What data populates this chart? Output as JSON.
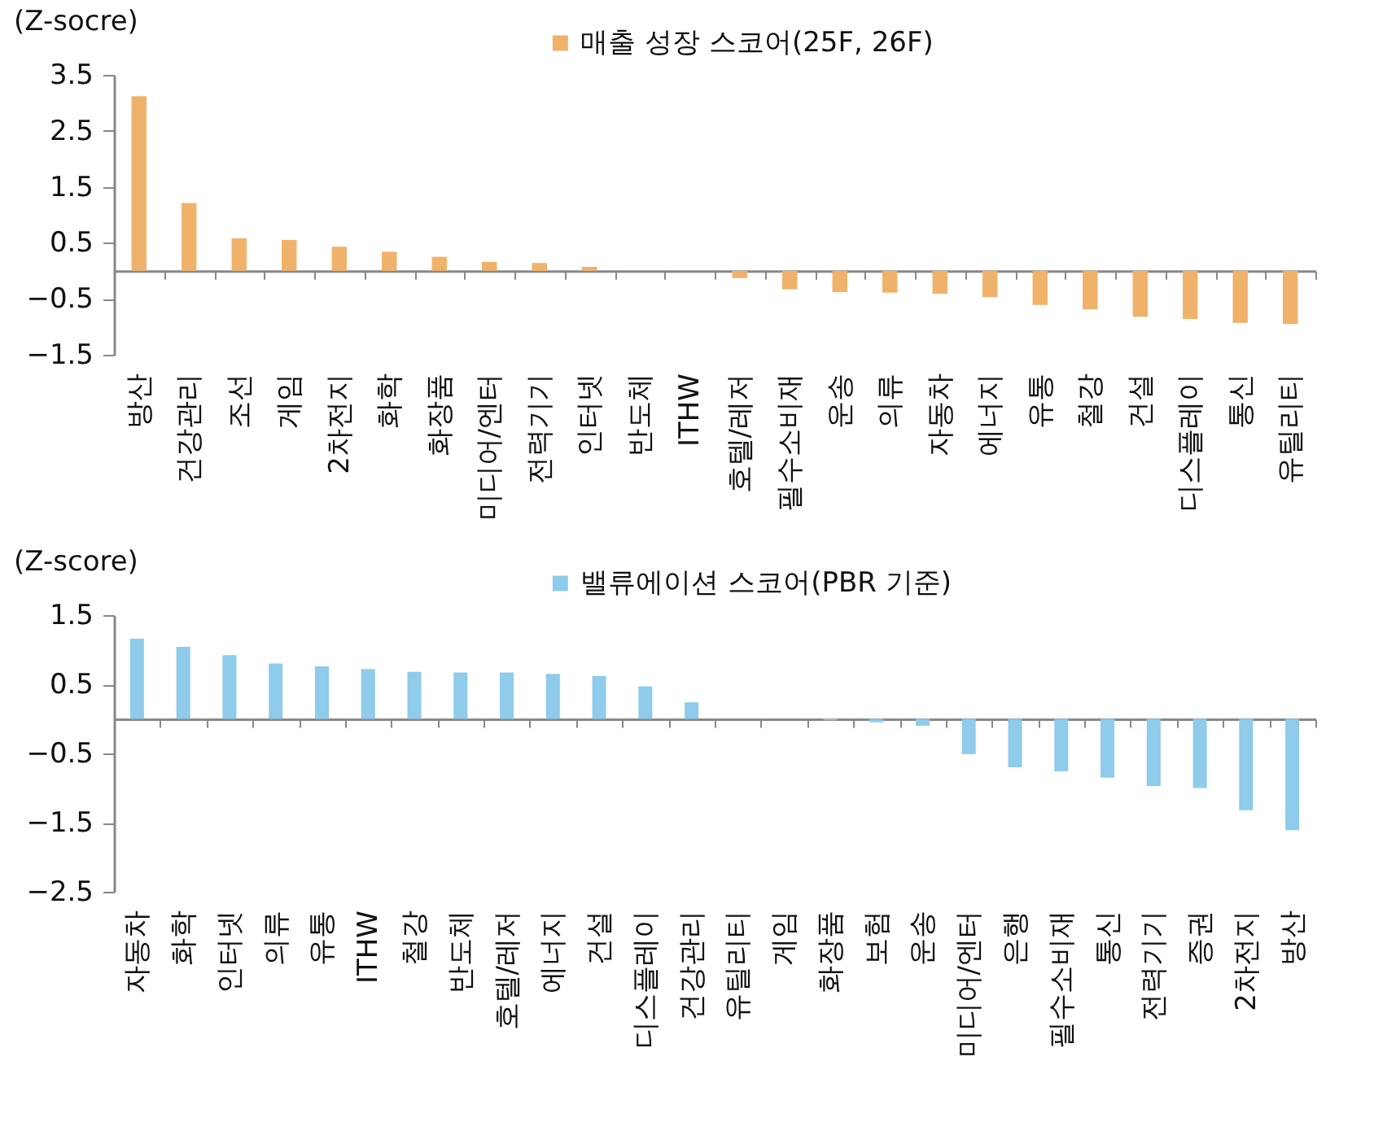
{
  "chart_data": [
    {
      "type": "bar",
      "ylabel": "(Z-socre)",
      "legend": "top",
      "categories": [
        "방산",
        "건강관리",
        "조선",
        "게임",
        "2차전지",
        "화학",
        "화장품",
        "미디어/엔터",
        "전력기기",
        "인터넷",
        "반도체",
        "ITHW",
        "호텔/레저",
        "필수소비재",
        "운송",
        "의류",
        "자동차",
        "에너지",
        "유통",
        "철강",
        "건설",
        "디스플레이",
        "통신",
        "유틸리티"
      ],
      "series": [
        {
          "name": "매출 성장 스코어(25F, 26F)",
          "color": "#f0b26a",
          "values": [
            3.12,
            1.21,
            0.58,
            0.55,
            0.43,
            0.34,
            0.25,
            0.16,
            0.14,
            0.07,
            0,
            0,
            -0.13,
            -0.33,
            -0.38,
            -0.39,
            -0.41,
            -0.47,
            -0.61,
            -0.69,
            -0.82,
            -0.86,
            -0.93,
            -0.95
          ]
        }
      ],
      "ylim": [
        -1.5,
        3.5
      ],
      "yticks": [
        3.5,
        2.5,
        1.5,
        0.5,
        -0.5,
        -1.5
      ]
    },
    {
      "type": "bar",
      "ylabel": "(Z-score)",
      "legend": "top",
      "categories": [
        "자동차",
        "화학",
        "인터넷",
        "의류",
        "유통",
        "ITHW",
        "철강",
        "반도체",
        "호텔/레저",
        "에너지",
        "건설",
        "디스플레이",
        "건강관리",
        "유틸리티",
        "게임",
        "화장품",
        "보험",
        "운송",
        "미디어/엔터",
        "은행",
        "필수소비재",
        "통신",
        "전력기기",
        "증권",
        "2차전지",
        "방산"
      ],
      "series": [
        {
          "name": "밸류에이션 스코어(PBR 기준)",
          "color": "#8fcbea",
          "values": [
            1.16,
            1.04,
            0.92,
            0.8,
            0.76,
            0.72,
            0.68,
            0.67,
            0.67,
            0.65,
            0.62,
            0.47,
            0.24,
            0,
            0,
            -0.02,
            -0.05,
            -0.1,
            -0.51,
            -0.7,
            -0.76,
            -0.85,
            -0.97,
            -1.0,
            -1.32,
            -1.61
          ]
        }
      ],
      "ylim": [
        -2.5,
        1.5
      ],
      "yticks": [
        1.5,
        0.5,
        -0.5,
        -1.5,
        -2.5
      ]
    }
  ]
}
